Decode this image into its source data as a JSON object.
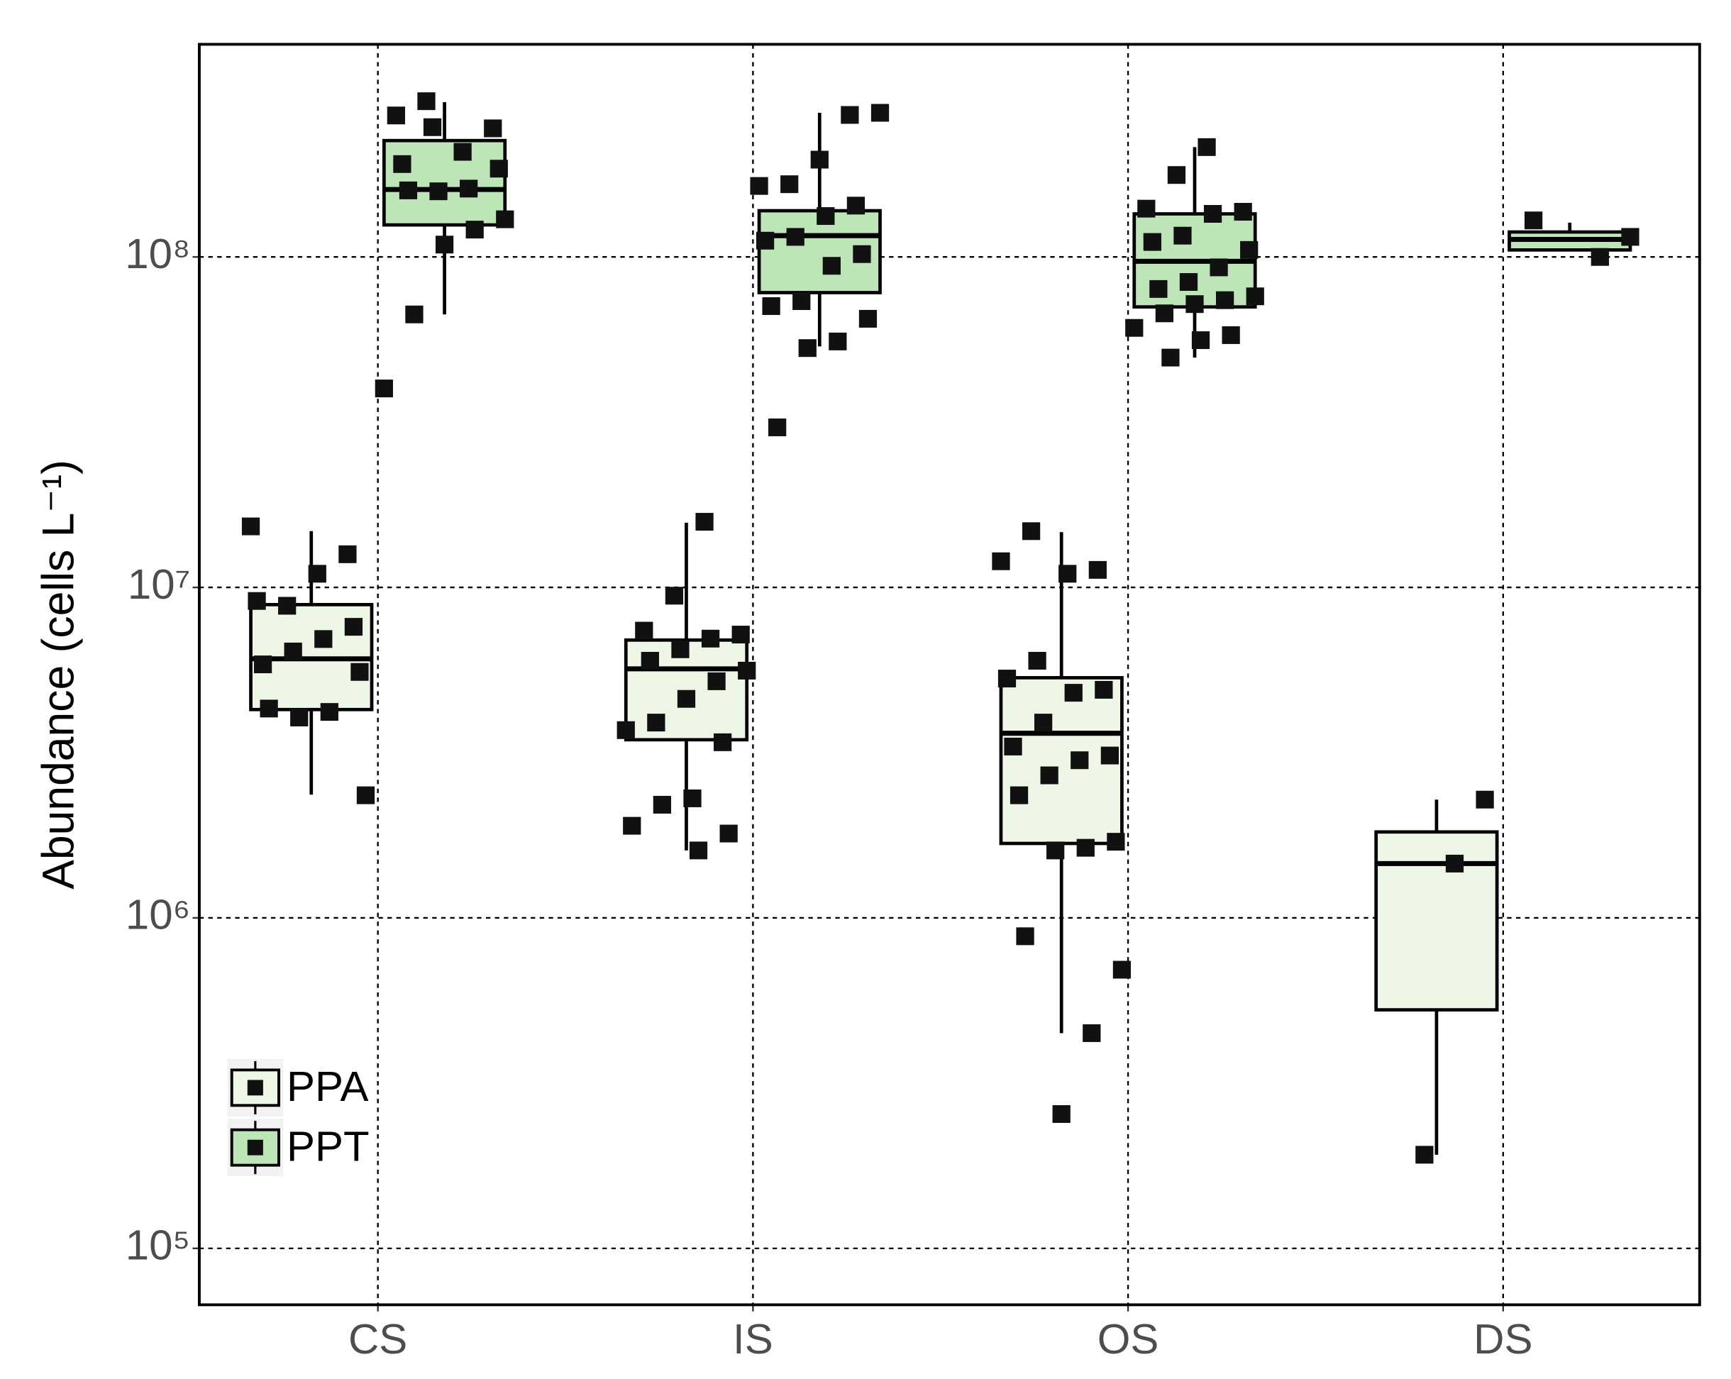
{
  "chart_data": {
    "type": "box",
    "y_label": "Abundance (cells L⁻¹)",
    "log_scale": true,
    "grid": true,
    "legend_position": "bottom-left",
    "categories": [
      "CS",
      "IS",
      "OS",
      "DS"
    ],
    "ylim": [
      67500,
      440000000
    ],
    "yticks": [
      {
        "value": 100000,
        "label": "10⁵"
      },
      {
        "value": 1000000,
        "label": "10⁶"
      },
      {
        "value": 10000000,
        "label": "10⁷"
      },
      {
        "value": 100000000,
        "label": "10⁸"
      }
    ],
    "series": [
      {
        "name": "PPA",
        "color": "#eef7e6",
        "stats": [
          [
            2360000,
            4270000,
            6080000,
            8870000,
            14800000
          ],
          [
            1600000,
            3460000,
            5670000,
            6930000,
            15700000
          ],
          [
            448000,
            1680000,
            3620000,
            5330000,
            14700000
          ],
          [
            192000,
            527000,
            1460000,
            1820000,
            2280000
          ]
        ],
        "points": [
          [
            15300000,
            12600000,
            11000000,
            8800000,
            9100000,
            7600000,
            6980000,
            6400000,
            5850000,
            5550000,
            4200000,
            4040000,
            4300000,
            2350000
          ],
          [
            15800000,
            9440000,
            7400000,
            7200000,
            7000000,
            6500000,
            6000000,
            5600000,
            5200000,
            4600000,
            3900000,
            3700000,
            3400000,
            2300000,
            2200000,
            1900000,
            1800000,
            1600000
          ],
          [
            14800000,
            12000000,
            11300000,
            11000000,
            6000000,
            5300000,
            4900000,
            4800000,
            3900000,
            3300000,
            3100000,
            3000000,
            2700000,
            2350000,
            1700000,
            1630000,
            1600000,
            880000,
            697000,
            448000,
            255000
          ],
          [
            2280000,
            1460000,
            192000
          ]
        ]
      },
      {
        "name": "PPT",
        "color": "#bde5b8",
        "stats": [
          [
            67000000,
            125000000,
            160000000,
            225000000,
            294000000
          ],
          [
            53600000,
            78000000,
            116000000,
            138000000,
            273000000
          ],
          [
            49600000,
            70600000,
            97000000,
            135000000,
            215000000
          ],
          [
            105000000,
            105000000,
            113000000,
            119000000,
            127000000
          ]
        ],
        "points": [
          [
            296000000,
            268000000,
            245000000,
            208000000,
            247000000,
            191000000,
            185000000,
            161000000,
            158000000,
            159000000,
            130000000,
            121000000,
            109000000,
            67000000,
            40000000
          ],
          [
            273000000,
            269000000,
            197000000,
            166000000,
            164000000,
            143000000,
            133000000,
            115000000,
            112000000,
            102000000,
            94000000,
            73500000,
            71000000,
            65000000,
            55500000,
            53000000,
            30500000
          ],
          [
            215000000,
            177000000,
            140000000,
            137000000,
            135000000,
            116000000,
            111000000,
            105000000,
            93000000,
            84000000,
            80000000,
            76000000,
            74000000,
            72000000,
            67500000,
            61000000,
            58000000,
            56000000,
            49600000
          ],
          [
            129000000,
            115000000,
            100000000
          ]
        ]
      }
    ]
  }
}
